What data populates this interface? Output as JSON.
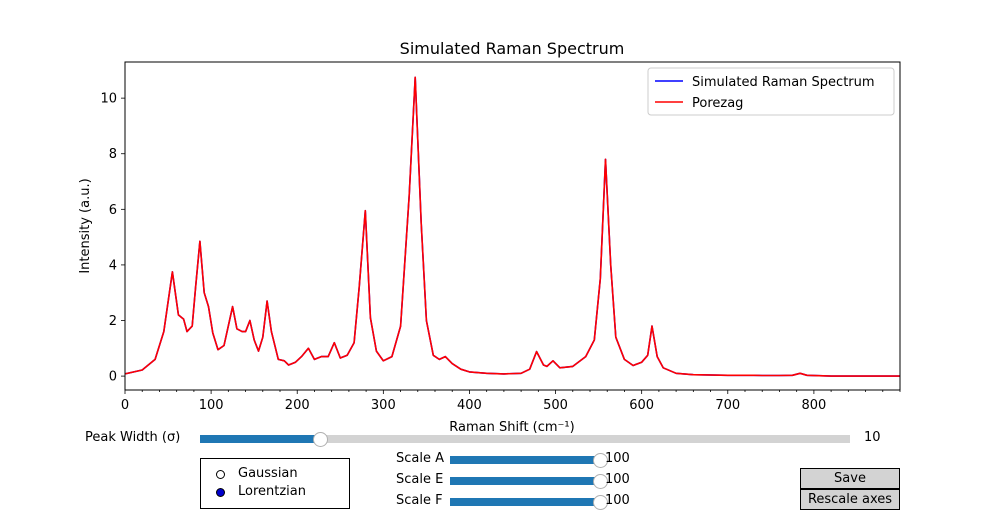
{
  "chart_data": {
    "type": "line",
    "title": "Simulated Raman Spectrum",
    "xlabel": "Raman Shift (cm⁻¹)",
    "ylabel": "Intensity (a.u.)",
    "xlim": [
      0,
      900
    ],
    "ylim": [
      -0.5,
      11.3
    ],
    "xticks": [
      0,
      100,
      200,
      300,
      400,
      500,
      600,
      700,
      800
    ],
    "yticks": [
      0,
      2,
      4,
      6,
      8,
      10
    ],
    "legend_position": "top-right",
    "series": [
      {
        "name": "Simulated Raman Spectrum",
        "color": "#0000ff",
        "x": [
          0,
          20,
          35,
          45,
          55,
          62,
          68,
          72,
          78,
          82,
          87,
          92,
          97,
          102,
          108,
          115,
          120,
          125,
          130,
          136,
          140,
          145,
          150,
          155,
          160,
          165,
          170,
          178,
          185,
          190,
          198,
          205,
          213,
          220,
          228,
          236,
          243,
          250,
          258,
          266,
          272,
          279,
          285,
          292,
          300,
          310,
          320,
          330,
          337,
          344,
          350,
          358,
          365,
          372,
          380,
          390,
          400,
          420,
          440,
          460,
          470,
          478,
          486,
          490,
          497,
          505,
          520,
          535,
          545,
          552,
          558,
          564,
          570,
          580,
          590,
          600,
          607,
          612,
          618,
          625,
          640,
          660,
          700,
          730,
          740,
          760,
          775,
          784,
          792,
          820,
          860,
          900
        ],
        "y": [
          0.08,
          0.22,
          0.6,
          1.6,
          3.75,
          2.2,
          2.05,
          1.6,
          1.8,
          3.2,
          4.85,
          3.0,
          2.5,
          1.55,
          0.95,
          1.1,
          1.8,
          2.5,
          1.7,
          1.6,
          1.6,
          2.0,
          1.3,
          0.9,
          1.4,
          2.7,
          1.6,
          0.6,
          0.55,
          0.4,
          0.5,
          0.7,
          1.0,
          0.6,
          0.7,
          0.7,
          1.2,
          0.65,
          0.75,
          1.2,
          3.2,
          5.95,
          2.1,
          0.9,
          0.55,
          0.7,
          1.8,
          6.5,
          10.75,
          5.5,
          2.0,
          0.75,
          0.6,
          0.7,
          0.45,
          0.25,
          0.15,
          0.1,
          0.08,
          0.1,
          0.25,
          0.88,
          0.4,
          0.35,
          0.55,
          0.3,
          0.35,
          0.7,
          1.3,
          3.5,
          7.8,
          4.0,
          1.4,
          0.6,
          0.38,
          0.5,
          0.75,
          1.8,
          0.7,
          0.3,
          0.1,
          0.05,
          0.03,
          0.03,
          0.02,
          0.02,
          0.03,
          0.1,
          0.03,
          0.0,
          0.0,
          0.0
        ]
      },
      {
        "name": "Porezag",
        "color": "#ff0000",
        "x": [
          0,
          20,
          35,
          45,
          55,
          62,
          68,
          72,
          78,
          82,
          87,
          92,
          97,
          102,
          108,
          115,
          120,
          125,
          130,
          136,
          140,
          145,
          150,
          155,
          160,
          165,
          170,
          178,
          185,
          190,
          198,
          205,
          213,
          220,
          228,
          236,
          243,
          250,
          258,
          266,
          272,
          279,
          285,
          292,
          300,
          310,
          320,
          330,
          337,
          344,
          350,
          358,
          365,
          372,
          380,
          390,
          400,
          420,
          440,
          460,
          470,
          478,
          486,
          490,
          497,
          505,
          520,
          535,
          545,
          552,
          558,
          564,
          570,
          580,
          590,
          600,
          607,
          612,
          618,
          625,
          640,
          660,
          700,
          730,
          740,
          760,
          775,
          784,
          792,
          820,
          860,
          900
        ],
        "y": [
          0.08,
          0.22,
          0.6,
          1.6,
          3.75,
          2.2,
          2.05,
          1.6,
          1.8,
          3.2,
          4.85,
          3.0,
          2.5,
          1.55,
          0.95,
          1.1,
          1.8,
          2.5,
          1.7,
          1.6,
          1.6,
          2.0,
          1.3,
          0.9,
          1.4,
          2.7,
          1.6,
          0.6,
          0.55,
          0.4,
          0.5,
          0.7,
          1.0,
          0.6,
          0.7,
          0.7,
          1.2,
          0.65,
          0.75,
          1.2,
          3.2,
          5.95,
          2.1,
          0.9,
          0.55,
          0.7,
          1.8,
          6.5,
          10.75,
          5.5,
          2.0,
          0.75,
          0.6,
          0.7,
          0.45,
          0.25,
          0.15,
          0.1,
          0.08,
          0.1,
          0.25,
          0.88,
          0.4,
          0.35,
          0.55,
          0.3,
          0.35,
          0.7,
          1.3,
          3.5,
          7.8,
          4.0,
          1.4,
          0.6,
          0.38,
          0.5,
          0.75,
          1.8,
          0.7,
          0.3,
          0.1,
          0.05,
          0.03,
          0.03,
          0.02,
          0.02,
          0.03,
          0.1,
          0.03,
          0.0,
          0.0,
          0.0
        ]
      }
    ]
  },
  "controls": {
    "peak_width": {
      "label": "Peak Width (σ)",
      "value_text": "10",
      "fraction": 0.185
    },
    "scale_a": {
      "label": "Scale A",
      "value_text": "100",
      "fraction": 1.0
    },
    "scale_e": {
      "label": "Scale E",
      "value_text": "100",
      "fraction": 1.0
    },
    "scale_f": {
      "label": "Scale F",
      "value_text": "100",
      "fraction": 1.0
    },
    "line_shape": {
      "options": [
        "Gaussian",
        "Lorentzian"
      ],
      "selected": "Lorentzian",
      "selected_color": "#0000cc"
    },
    "buttons": {
      "save": "Save",
      "rescale": "Rescale axes"
    }
  },
  "colors": {
    "slider_fill": "#1f77b4",
    "slider_track": "#d3d3d3",
    "button_bg": "#d3d3d3"
  }
}
